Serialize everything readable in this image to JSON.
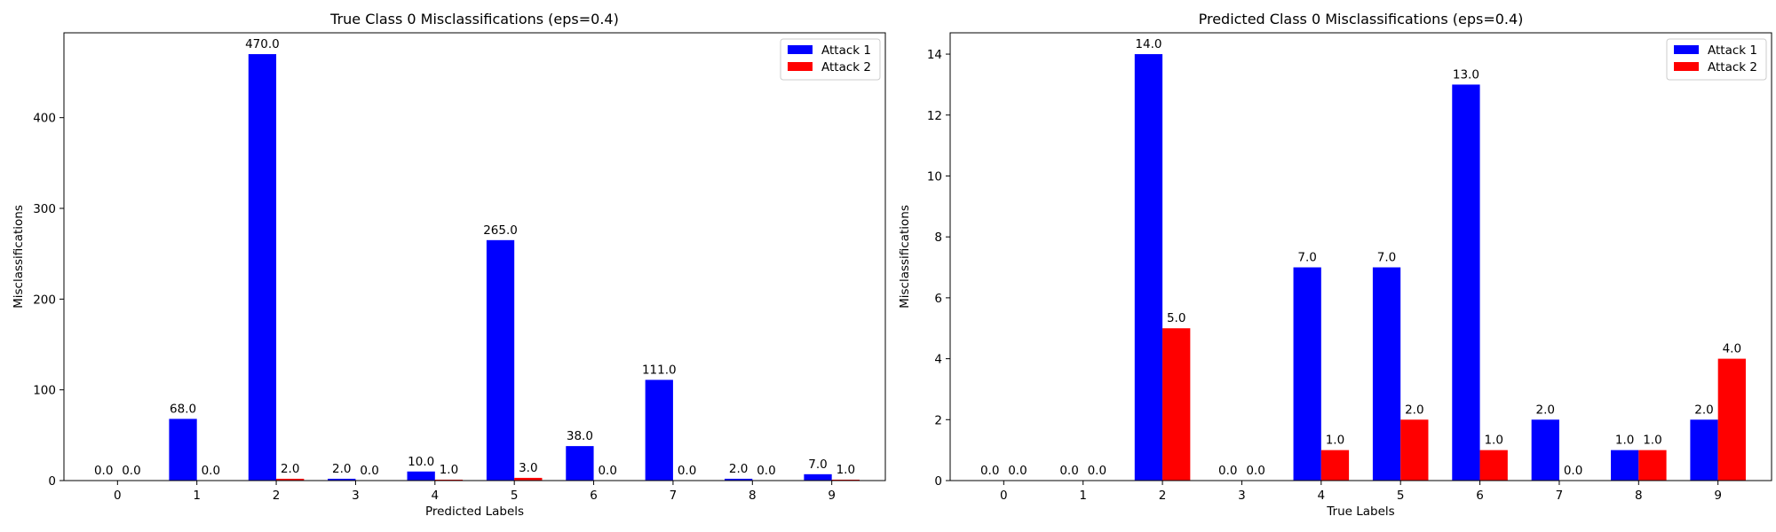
{
  "chart_data": [
    {
      "type": "bar",
      "title": "True Class 0 Misclassifications (eps=0.4)",
      "xlabel": "Predicted Labels",
      "ylabel": "Misclassifications",
      "categories": [
        "0",
        "1",
        "2",
        "3",
        "4",
        "5",
        "6",
        "7",
        "8",
        "9"
      ],
      "series": [
        {
          "name": "Attack 1",
          "color": "#0000ff",
          "values": [
            0,
            68,
            470,
            2,
            10,
            265,
            38,
            111,
            2,
            7
          ]
        },
        {
          "name": "Attack 2",
          "color": "#ff0000",
          "values": [
            0,
            0,
            2,
            0,
            1,
            3,
            0,
            0,
            0,
            1
          ]
        }
      ],
      "ylim": [
        0,
        493.5
      ],
      "yticks": [
        0,
        100,
        200,
        300,
        400
      ],
      "legend": "top-right",
      "grid": false,
      "bar_labels_decimals": 1
    },
    {
      "type": "bar",
      "title": "Predicted Class 0 Misclassifications (eps=0.4)",
      "xlabel": "True Labels",
      "ylabel": "Misclassifications",
      "categories": [
        "0",
        "1",
        "2",
        "3",
        "4",
        "5",
        "6",
        "7",
        "8",
        "9"
      ],
      "series": [
        {
          "name": "Attack 1",
          "color": "#0000ff",
          "values": [
            0,
            0,
            14,
            0,
            7,
            7,
            13,
            2,
            1,
            2
          ]
        },
        {
          "name": "Attack 2",
          "color": "#ff0000",
          "values": [
            0,
            0,
            5,
            0,
            1,
            2,
            1,
            0,
            1,
            4
          ]
        }
      ],
      "ylim": [
        0,
        14.7
      ],
      "yticks": [
        0,
        2,
        4,
        6,
        8,
        10,
        12,
        14
      ],
      "legend": "top-right",
      "grid": false,
      "bar_labels_decimals": 1
    }
  ]
}
